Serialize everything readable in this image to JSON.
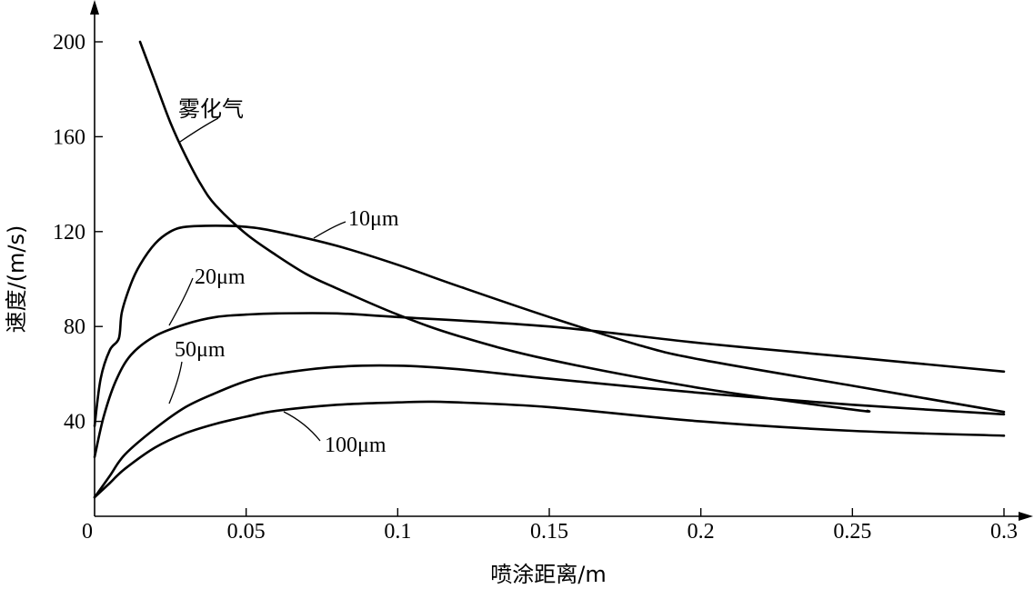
{
  "chart_data": {
    "type": "line",
    "title": "",
    "xlabel": "喷涂距离/m",
    "ylabel": "速度/(m/s)",
    "xlim": [
      0,
      0.3
    ],
    "ylim": [
      0,
      200
    ],
    "xticks": [
      "0",
      "0.05",
      "0.1",
      "0.15",
      "0.2",
      "0.25",
      "0.3"
    ],
    "yticks": [
      "40",
      "80",
      "120",
      "160",
      "200"
    ],
    "grid": false,
    "legend": "none",
    "series": [
      {
        "name": "雾化气",
        "x": [
          0.015,
          0.02,
          0.025,
          0.03,
          0.035,
          0.04,
          0.05,
          0.06,
          0.07,
          0.08,
          0.1,
          0.12,
          0.15,
          0.2,
          0.25,
          0.255
        ],
        "y": [
          200,
          183,
          166,
          152,
          140,
          131,
          119,
          110,
          102,
          96,
          85,
          76,
          66,
          54,
          45,
          44.5
        ]
      },
      {
        "name": "10μm",
        "x": [
          0,
          0.002,
          0.005,
          0.008,
          0.009,
          0.012,
          0.015,
          0.02,
          0.025,
          0.03,
          0.04,
          0.05,
          0.06,
          0.08,
          0.1,
          0.12,
          0.15,
          0.18,
          0.2,
          0.25,
          0.3
        ],
        "y": [
          38,
          58,
          70,
          75,
          86,
          98,
          106,
          115,
          120,
          122,
          122.5,
          122,
          120,
          114,
          106,
          97,
          84,
          72,
          66,
          55,
          44
        ]
      },
      {
        "name": "20μm",
        "x": [
          0,
          0.003,
          0.007,
          0.012,
          0.02,
          0.03,
          0.04,
          0.05,
          0.06,
          0.08,
          0.1,
          0.15,
          0.2,
          0.25,
          0.3
        ],
        "y": [
          25,
          42,
          57,
          68,
          76,
          81,
          84,
          85,
          85.5,
          85.5,
          84,
          80,
          73,
          67,
          61
        ]
      },
      {
        "name": "50μm",
        "x": [
          0,
          0.005,
          0.01,
          0.02,
          0.03,
          0.04,
          0.05,
          0.06,
          0.08,
          0.1,
          0.12,
          0.15,
          0.2,
          0.25,
          0.3
        ],
        "y": [
          8,
          17,
          26,
          37,
          46,
          52,
          57,
          60,
          63,
          63.5,
          62,
          58,
          52,
          47,
          43
        ]
      },
      {
        "name": "100μm",
        "x": [
          0,
          0.005,
          0.01,
          0.02,
          0.03,
          0.04,
          0.05,
          0.06,
          0.08,
          0.1,
          0.11,
          0.12,
          0.15,
          0.2,
          0.25,
          0.3
        ],
        "y": [
          8,
          14,
          20,
          29,
          35,
          39,
          42,
          44.5,
          47,
          48,
          48.3,
          48,
          46,
          40,
          36,
          34
        ]
      }
    ]
  }
}
